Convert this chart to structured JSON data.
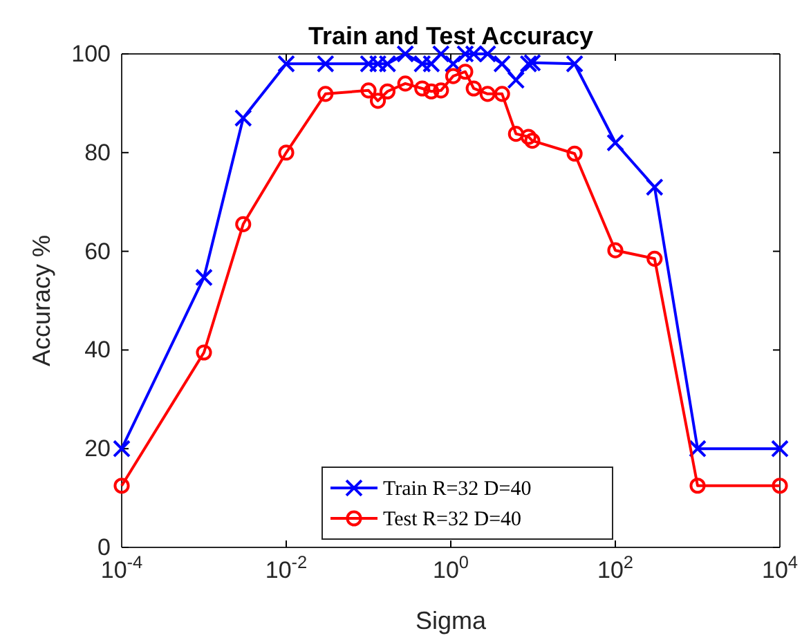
{
  "chart_data": {
    "type": "line",
    "title": "Train and Test Accuracy",
    "xlabel": "Sigma",
    "ylabel": "Accuracy %",
    "x": [
      0.0001,
      0.001,
      0.003,
      0.01,
      0.03,
      0.1,
      0.13,
      0.17,
      0.28,
      0.45,
      0.58,
      0.76,
      1.07,
      1.5,
      1.9,
      2.8,
      4.2,
      6.2,
      8.8,
      9.8,
      32,
      100,
      300,
      1000,
      10000
    ],
    "series": [
      {
        "name": "Train R=32 D=40",
        "color": "#0000ff",
        "marker": "cross",
        "values": [
          20,
          54.7,
          87,
          98,
          98,
          98,
          98,
          98,
          100,
          98,
          98,
          100,
          98,
          100,
          100,
          100,
          98,
          94.7,
          98,
          98.2,
          98,
          82,
          73,
          20,
          20
        ]
      },
      {
        "name": "Test R=32 D=40",
        "color": "#ff0000",
        "marker": "circle",
        "values": [
          12.5,
          39.5,
          65.5,
          80,
          91.9,
          92.6,
          90.5,
          92.4,
          94,
          93,
          92.4,
          92.6,
          95.5,
          96.4,
          93,
          91.9,
          91.9,
          83.8,
          83.2,
          82.4,
          79.8,
          60.2,
          58.5,
          12.5,
          12.5
        ]
      }
    ],
    "log": "x",
    "xlim": [
      0.0001,
      10000
    ],
    "xticks": [
      {
        "value": 0.0001,
        "label": "10$^{-4}$"
      },
      {
        "value": 0.01,
        "label": "10$^{-2}$"
      },
      {
        "value": 1,
        "label": "10$^{0}$"
      },
      {
        "value": 100,
        "label": "10$^{2}$"
      },
      {
        "value": 10000,
        "label": "10$^{4}$"
      }
    ],
    "ylim": [
      0,
      100
    ],
    "yticks": [
      0,
      20,
      40,
      60,
      80,
      100
    ],
    "grid": false,
    "legend": "bottom",
    "line_style": "solid"
  }
}
